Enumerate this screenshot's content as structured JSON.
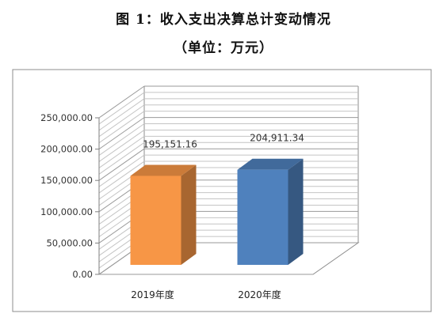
{
  "title": "图 1：收入支出决算总计变动情况",
  "subtitle": "（单位：万元）",
  "chart_data": {
    "type": "bar",
    "categories": [
      "2019年度",
      "2020年度"
    ],
    "values": [
      195151.16,
      204911.34
    ],
    "data_labels": [
      "195,151.16",
      "204,911.34"
    ],
    "ylim": [
      0,
      250000
    ],
    "yticks": [
      0,
      50000,
      100000,
      150000,
      200000,
      250000
    ],
    "ytick_labels": [
      "0.00",
      "50,000.00",
      "100,000.00",
      "150,000.00",
      "200,000.00",
      "250,000.00"
    ],
    "colors": [
      "#F79646",
      "#4F81BD"
    ],
    "grid": true,
    "legend": "none",
    "style": "3d"
  }
}
